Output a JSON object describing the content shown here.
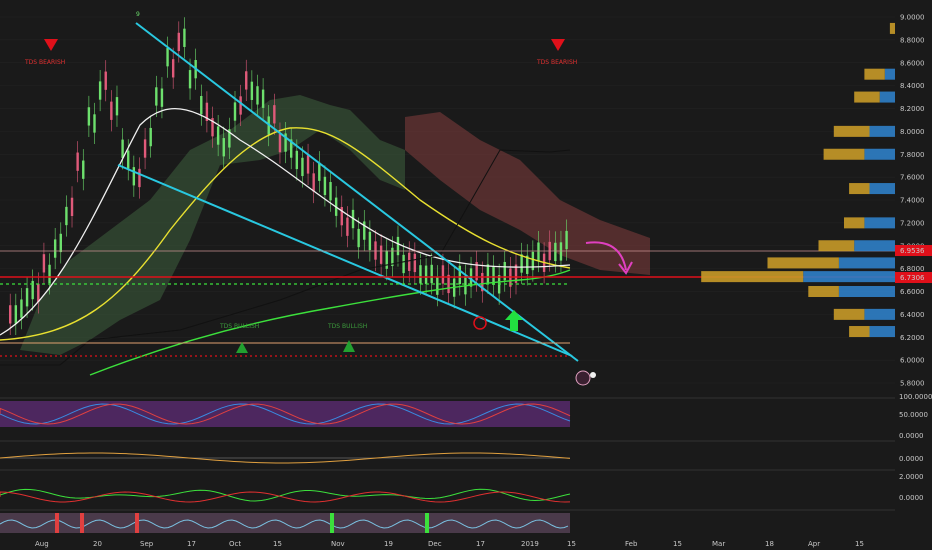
{
  "chart_data": [
    {
      "type": "line",
      "panel": "price",
      "price_axis_ticks": [
        "9.0000",
        "8.8000",
        "8.6000",
        "8.4000",
        "8.2000",
        "8.0000",
        "7.8000",
        "7.6000",
        "7.4000",
        "7.2000",
        "7.0000",
        "6.8000",
        "6.6000",
        "6.4000",
        "6.2000",
        "6.0000",
        "5.8000"
      ],
      "price_axis_tick_values": [
        9.0,
        8.8,
        8.6,
        8.4,
        8.2,
        8.0,
        7.8,
        7.6,
        7.4,
        7.2,
        7.0,
        6.8,
        6.6,
        6.4,
        6.2,
        6.0,
        5.8
      ],
      "ylim": [
        5.75,
        9.05
      ],
      "time_axis_labels": [
        "Aug",
        "20",
        "Sep",
        "17",
        "Oct",
        "15",
        "Nov",
        "19",
        "Dec",
        "17",
        "2019",
        "15",
        "Feb",
        "15",
        "Mar",
        "18",
        "Apr",
        "15"
      ],
      "current_price_label": "6.9536",
      "support_price_label": "6.7306",
      "current_price": 6.9536,
      "support_price": 6.7306,
      "annotations": {
        "td_bearish_left": "TDS BEARISH",
        "td_bearish_right": "TDS BEARISH",
        "td_bullish_left": "TDS BULLISH",
        "td_bullish_right": "TDS BULLISH",
        "marker_top": "9"
      },
      "volume_profile": [
        {
          "price": 8.9,
          "blue": 0.0,
          "gold": 0.05
        },
        {
          "price": 8.5,
          "blue": 0.1,
          "gold": 0.2
        },
        {
          "price": 8.3,
          "blue": 0.15,
          "gold": 0.25
        },
        {
          "price": 8.0,
          "blue": 0.25,
          "gold": 0.35
        },
        {
          "price": 7.8,
          "blue": 0.3,
          "gold": 0.4
        },
        {
          "price": 7.5,
          "blue": 0.25,
          "gold": 0.2
        },
        {
          "price": 7.2,
          "blue": 0.3,
          "gold": 0.2
        },
        {
          "price": 7.0,
          "blue": 0.4,
          "gold": 0.35
        },
        {
          "price": 6.85,
          "blue": 0.55,
          "gold": 0.7
        },
        {
          "price": 6.73,
          "blue": 0.9,
          "gold": 1.0
        },
        {
          "price": 6.6,
          "blue": 0.55,
          "gold": 0.3
        },
        {
          "price": 6.4,
          "blue": 0.3,
          "gold": 0.3
        },
        {
          "price": 6.25,
          "blue": 0.25,
          "gold": 0.2
        }
      ]
    },
    {
      "type": "line",
      "panel": "oscillator",
      "axis_ticks": [
        "100.0000",
        "50.0000",
        "0.0000"
      ]
    },
    {
      "type": "bar",
      "panel": "macd",
      "axis_ticks": [
        "0.0000"
      ]
    },
    {
      "type": "line",
      "panel": "indicator",
      "axis_ticks": [
        "2.0000",
        "0.0000"
      ]
    }
  ],
  "colors": {
    "background": "#1a1a1a",
    "trendline": "#29c8e0",
    "support": "#e0101a",
    "bear_candle": "#e05a7a",
    "bull_candle": "#6de06d",
    "ma_yellow": "#e8e030",
    "ma_white": "#f0f0f0",
    "ma_green": "#3ce03c",
    "cloud_red": "#7a3a3a",
    "cloud_green": "#3a5a3a",
    "price_tag": "#e0101a",
    "vp_blue": "#2f7fc8",
    "vp_gold": "#c89a28",
    "arrow_pink": "#e040c0",
    "arrow_green": "#22e040"
  }
}
